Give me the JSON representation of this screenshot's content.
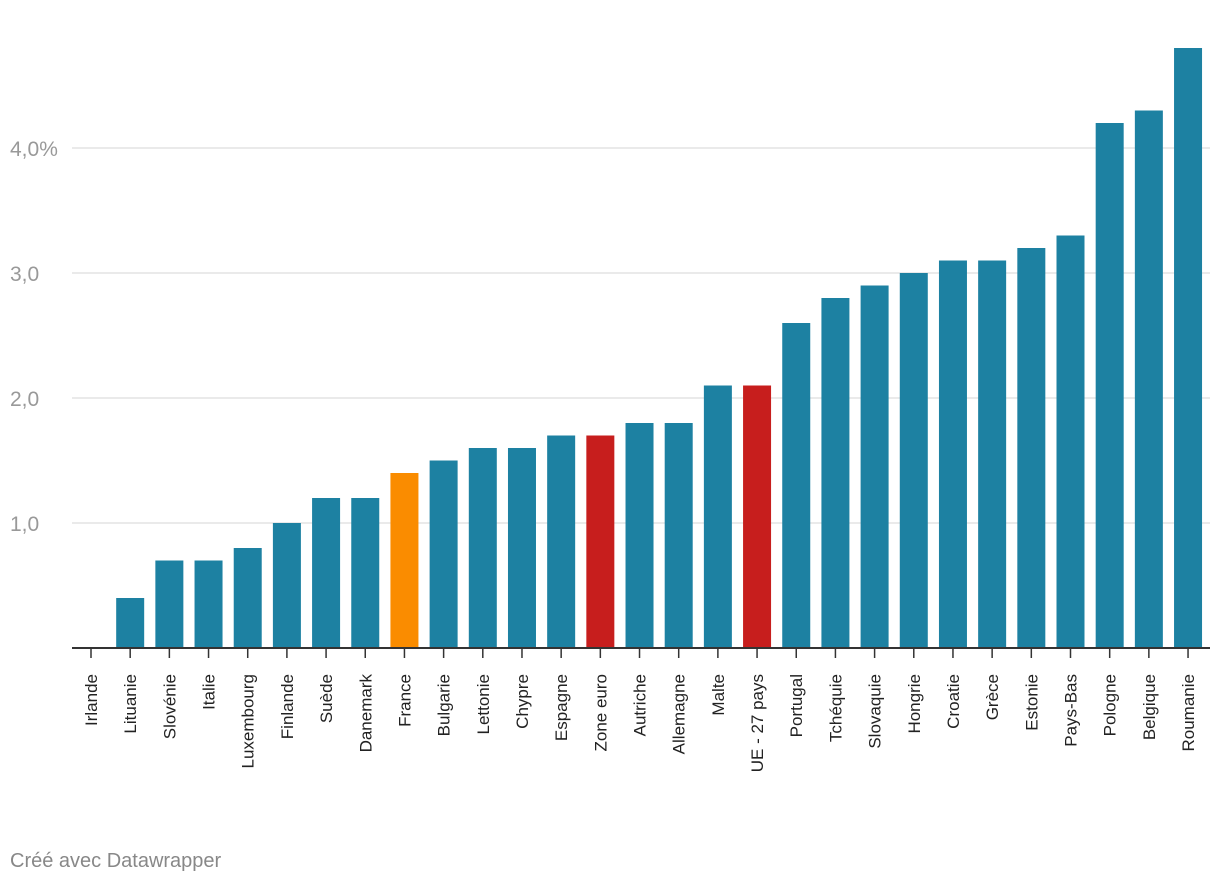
{
  "chart_data": {
    "type": "bar",
    "categories": [
      "Irlande",
      "Lituanie",
      "Slovénie",
      "Italie",
      "Luxembourg",
      "Finlande",
      "Suède",
      "Danemark",
      "France",
      "Bulgarie",
      "Lettonie",
      "Chypre",
      "Espagne",
      "Zone euro",
      "Autriche",
      "Allemagne",
      "Malte",
      "UE - 27 pays",
      "Portugal",
      "Tchéquie",
      "Slovaquie",
      "Hongrie",
      "Croatie",
      "Grèce",
      "Estonie",
      "Pays-Bas",
      "Pologne",
      "Belgique",
      "Roumanie"
    ],
    "values": [
      0.0,
      0.4,
      0.7,
      0.7,
      0.8,
      1.0,
      1.2,
      1.2,
      1.4,
      1.5,
      1.6,
      1.6,
      1.7,
      1.7,
      1.8,
      1.8,
      2.1,
      2.1,
      2.6,
      2.8,
      2.9,
      3.0,
      3.1,
      3.1,
      3.2,
      3.3,
      4.2,
      4.3,
      4.8
    ],
    "bar_colors": [
      "#1d81a2",
      "#1d81a2",
      "#1d81a2",
      "#1d81a2",
      "#1d81a2",
      "#1d81a2",
      "#1d81a2",
      "#1d81a2",
      "#fa8c00",
      "#1d81a2",
      "#1d81a2",
      "#1d81a2",
      "#1d81a2",
      "#c71e1d",
      "#1d81a2",
      "#1d81a2",
      "#1d81a2",
      "#c71e1d",
      "#1d81a2",
      "#1d81a2",
      "#1d81a2",
      "#1d81a2",
      "#1d81a2",
      "#1d81a2",
      "#1d81a2",
      "#1d81a2",
      "#1d81a2",
      "#1d81a2",
      "#1d81a2"
    ],
    "yticks": [
      {
        "value": 1.0,
        "label": "1,0"
      },
      {
        "value": 2.0,
        "label": "2,0"
      },
      {
        "value": 3.0,
        "label": "3,0"
      },
      {
        "value": 4.0,
        "label": "4,0%"
      }
    ],
    "ylim": [
      0,
      4.8
    ],
    "grid": true,
    "title": "",
    "xlabel": "",
    "ylabel": ""
  },
  "footer": {
    "credit": "Créé avec Datawrapper"
  }
}
